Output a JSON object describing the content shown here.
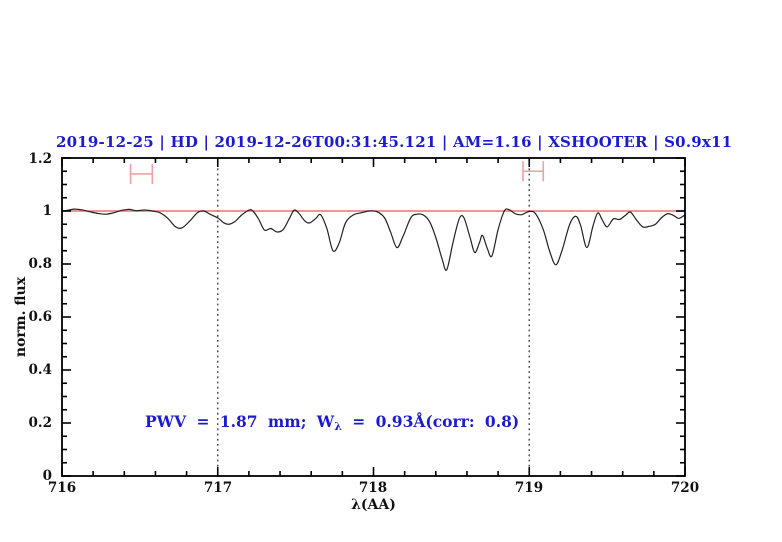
{
  "title": {
    "text": "2019-12-25 | HD | 2019-12-26T00:31:45.121 | AM=1.16 | XSHOOTER | S0.9x11"
  },
  "annotation": {
    "part1": "PWV = 1.87 mm; W",
    "subscript": "λ",
    "part2": " = 0.93Å(corr: 0.8)"
  },
  "axes": {
    "xlabel": "λ(AA)",
    "ylabel": "norm. flux",
    "x_tick_labels": [
      "716",
      "717",
      "718",
      "719",
      "720"
    ],
    "y_tick_labels": [
      "0",
      "0.2",
      "0.4",
      "0.6",
      "0.8",
      "1",
      "1.2"
    ]
  },
  "colors": {
    "background": "#ffffff",
    "frame": "#000000",
    "accent_blue": "#1b1bd1",
    "continuum_red": "#e87272",
    "marker_pink": "#f2a0a0",
    "spectrum_black": "#222222",
    "guide_gray": "#444444"
  },
  "chart_data": {
    "type": "line",
    "title": "2019-12-25 | HD | 2019-12-26T00:31:45.121 | AM=1.16 | XSHOOTER | S0.9x11",
    "xlabel": "λ(AA)",
    "ylabel": "norm. flux",
    "xlim": [
      716,
      720
    ],
    "ylim": [
      0,
      1.2
    ],
    "grid": "off",
    "x_major_ticks": [
      716,
      717,
      718,
      719,
      720
    ],
    "x_minor_step": 0.2,
    "y_major_ticks": [
      0,
      0.2,
      0.4,
      0.6,
      0.8,
      1.0,
      1.2
    ],
    "y_minor_step": 0.05,
    "dotted_vlines": [
      717,
      719
    ],
    "continuum_line": {
      "y": 1.0
    },
    "range_markers": [
      {
        "x_min": 716.44,
        "x_max": 716.58,
        "y": 1.14,
        "cap_half_height": 0.038
      },
      {
        "x_min": 718.96,
        "x_max": 719.09,
        "y": 1.15,
        "cap_half_height": 0.038
      }
    ],
    "annotation_text": "PWV = 1.87 mm; W_λ = 0.93Å(corr: 0.8)",
    "series": [
      {
        "name": "telluric-spectrum",
        "x": [
          716.0,
          716.04,
          716.08,
          716.13,
          716.18,
          716.23,
          716.28,
          716.33,
          716.38,
          716.43,
          716.48,
          716.53,
          716.58,
          716.63,
          716.68,
          716.73,
          716.77,
          716.82,
          716.87,
          716.91,
          716.95,
          717.0,
          717.04,
          717.07,
          717.11,
          717.15,
          717.19,
          717.22,
          717.26,
          717.3,
          717.34,
          717.38,
          717.42,
          717.46,
          717.49,
          717.52,
          717.56,
          717.59,
          717.63,
          717.66,
          717.7,
          717.74,
          717.78,
          717.82,
          717.87,
          717.92,
          717.97,
          718.02,
          718.07,
          718.11,
          718.15,
          718.19,
          718.24,
          718.28,
          718.32,
          718.36,
          718.4,
          718.44,
          718.47,
          718.51,
          718.55,
          718.58,
          718.62,
          718.65,
          718.68,
          718.7,
          718.73,
          718.76,
          718.8,
          718.84,
          718.87,
          718.91,
          718.95,
          719.0,
          719.04,
          719.09,
          719.13,
          719.17,
          719.21,
          719.26,
          719.3,
          719.33,
          719.37,
          719.41,
          719.44,
          719.47,
          719.5,
          719.54,
          719.58,
          719.62,
          719.65,
          719.69,
          719.73,
          719.77,
          719.81,
          719.85,
          719.89,
          719.93,
          719.96,
          720.0
        ],
        "y": [
          1.0,
          1.003,
          1.007,
          1.004,
          0.997,
          0.991,
          0.988,
          0.993,
          1.002,
          1.006,
          1.001,
          1.004,
          1.0,
          0.993,
          0.972,
          0.94,
          0.936,
          0.962,
          0.994,
          1.0,
          0.988,
          0.974,
          0.955,
          0.95,
          0.96,
          0.983,
          1.0,
          1.003,
          0.972,
          0.928,
          0.934,
          0.921,
          0.93,
          0.972,
          1.003,
          0.992,
          0.962,
          0.955,
          0.972,
          0.986,
          0.935,
          0.85,
          0.88,
          0.955,
          0.985,
          0.993,
          1.0,
          0.998,
          0.975,
          0.92,
          0.862,
          0.905,
          0.975,
          0.988,
          0.985,
          0.96,
          0.9,
          0.82,
          0.778,
          0.88,
          0.97,
          0.975,
          0.9,
          0.843,
          0.88,
          0.908,
          0.86,
          0.83,
          0.93,
          1.0,
          1.005,
          0.99,
          0.986,
          0.998,
          0.99,
          0.93,
          0.85,
          0.797,
          0.85,
          0.95,
          0.98,
          0.945,
          0.862,
          0.945,
          0.993,
          0.965,
          0.94,
          0.97,
          0.968,
          0.985,
          0.996,
          0.965,
          0.94,
          0.942,
          0.95,
          0.975,
          0.99,
          0.982,
          0.972,
          0.985
        ]
      }
    ]
  }
}
